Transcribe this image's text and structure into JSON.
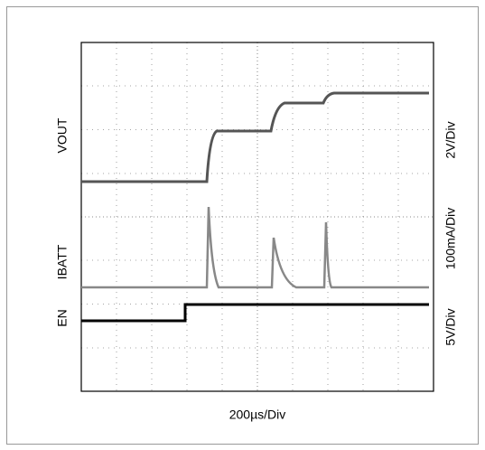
{
  "scope": {
    "channels": [
      {
        "label": "VOUT",
        "scale": "2V/Div"
      },
      {
        "label": "IBATT",
        "scale": "100mA/Div"
      },
      {
        "label": "EN",
        "scale": "5V/Div"
      }
    ],
    "timebase": "200µs/Div"
  }
}
